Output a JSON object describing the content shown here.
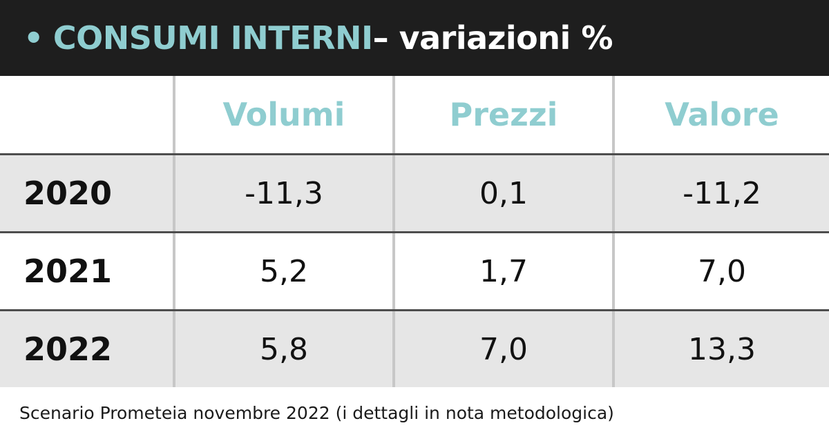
{
  "header": {
    "bullet": "•",
    "title_accent": "CONSUMI INTERNI",
    "title_rest": " – variazioni %"
  },
  "chart_data": {
    "type": "table",
    "columns": [
      "Volumi",
      "Prezzi",
      "Valore"
    ],
    "rows": [
      {
        "label": "2020",
        "values": [
          "-11,3",
          "0,1",
          "-11,2"
        ]
      },
      {
        "label": "2021",
        "values": [
          "5,2",
          "1,7",
          "7,0"
        ]
      },
      {
        "label": "2022",
        "values": [
          "5,8",
          "7,0",
          "13,3"
        ]
      }
    ]
  },
  "footer": {
    "note": "Scenario Prometeia novembre 2022 (i dettagli in nota metodologica)"
  },
  "colors": {
    "header_bg": "#1e1e1e",
    "accent": "#8fcdd0",
    "shaded_row": "#e6e6e6"
  }
}
